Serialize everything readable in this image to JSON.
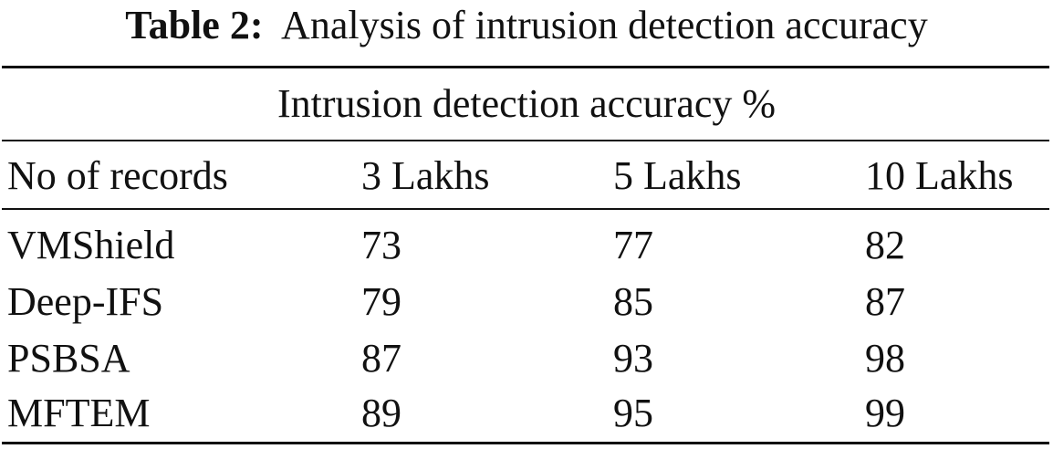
{
  "caption": {
    "label": "Table 2:",
    "text": "Analysis of intrusion detection accuracy"
  },
  "table": {
    "spanner_header": "Intrusion detection accuracy %",
    "columns": [
      "No of records",
      "3 Lakhs",
      "5 Lakhs",
      "10 Lakhs"
    ],
    "rows": [
      [
        "VMShield",
        "73",
        "77",
        "82"
      ],
      [
        "Deep-IFS",
        "79",
        "85",
        "87"
      ],
      [
        "PSBSA",
        "87",
        "93",
        "98"
      ],
      [
        "MFTEM",
        "89",
        "95",
        "99"
      ]
    ]
  }
}
